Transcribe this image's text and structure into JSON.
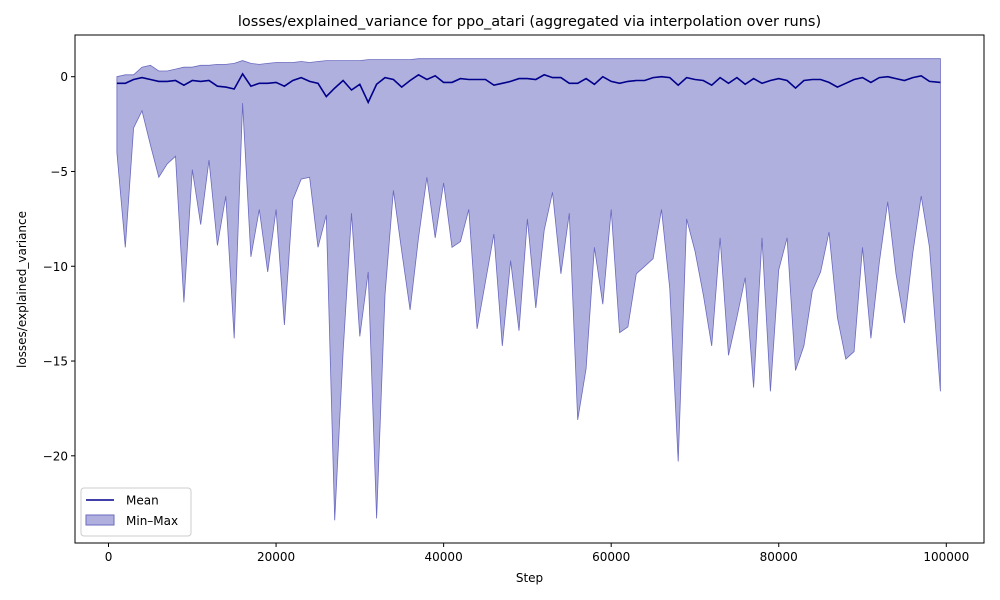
{
  "chart_data": {
    "type": "line",
    "title": "losses/explained_variance for ppo_atari (aggregated via interpolation over runs)",
    "xlabel": "Step",
    "ylabel": "losses/explained_variance",
    "xlim": [
      -4000,
      104500
    ],
    "ylim": [
      -24.6,
      2.2
    ],
    "xticks": [
      0,
      20000,
      40000,
      60000,
      80000,
      100000
    ],
    "xtick_labels": [
      "0",
      "20000",
      "40000",
      "60000",
      "80000",
      "100000"
    ],
    "yticks": [
      0,
      -5,
      -10,
      -15,
      -20
    ],
    "ytick_labels": [
      "0",
      "−5",
      "−10",
      "−15",
      "−20"
    ],
    "grid": false,
    "legend_position": "lower-left",
    "colors": {
      "mean": "#00008b",
      "band_fill": "#7b7bc8",
      "band_edge": "#6a6ac0"
    },
    "series": [
      {
        "name": "Mean",
        "x": [
          1000,
          2000,
          3000,
          4000,
          5000,
          6000,
          7000,
          8000,
          9000,
          10000,
          11000,
          12000,
          13000,
          14000,
          15000,
          16000,
          17000,
          18000,
          19000,
          20000,
          21000,
          22000,
          23000,
          24000,
          25000,
          26000,
          27000,
          28000,
          29000,
          30000,
          31000,
          32000,
          33000,
          34000,
          35000,
          36000,
          37000,
          38000,
          39000,
          40000,
          41000,
          42000,
          43000,
          44000,
          45000,
          46000,
          47000,
          48000,
          49000,
          50000,
          51000,
          52000,
          53000,
          54000,
          55000,
          56000,
          57000,
          58000,
          59000,
          60000,
          61000,
          62000,
          63000,
          64000,
          65000,
          66000,
          67000,
          68000,
          69000,
          70000,
          71000,
          72000,
          73000,
          74000,
          75000,
          76000,
          77000,
          78000,
          79000,
          80000,
          81000,
          82000,
          83000,
          84000,
          85000,
          86000,
          87000,
          88000,
          89000,
          90000,
          91000,
          92000,
          93000,
          94000,
          95000,
          96000,
          97000,
          98000,
          99300
        ],
        "y": [
          -0.35,
          -0.35,
          -0.15,
          -0.05,
          -0.15,
          -0.25,
          -0.25,
          -0.2,
          -0.45,
          -0.2,
          -0.25,
          -0.2,
          -0.5,
          -0.55,
          -0.65,
          0.15,
          -0.5,
          -0.35,
          -0.35,
          -0.3,
          -0.5,
          -0.2,
          -0.05,
          -0.25,
          -0.35,
          -1.05,
          -0.6,
          -0.2,
          -0.7,
          -0.4,
          -1.35,
          -0.4,
          -0.05,
          -0.15,
          -0.55,
          -0.2,
          0.1,
          -0.15,
          0.05,
          -0.3,
          -0.3,
          -0.1,
          -0.15,
          -0.15,
          -0.15,
          -0.45,
          -0.35,
          -0.25,
          -0.1,
          -0.1,
          -0.15,
          0.1,
          -0.05,
          -0.05,
          -0.35,
          -0.35,
          -0.1,
          -0.4,
          0.0,
          -0.25,
          -0.35,
          -0.25,
          -0.2,
          -0.2,
          -0.05,
          0.0,
          -0.05,
          -0.45,
          -0.05,
          -0.15,
          -0.2,
          -0.45,
          -0.05,
          -0.35,
          -0.05,
          -0.4,
          -0.1,
          -0.35,
          -0.2,
          -0.1,
          -0.2,
          -0.6,
          -0.2,
          -0.15,
          -0.15,
          -0.3,
          -0.55,
          -0.35,
          -0.15,
          -0.05,
          -0.3,
          -0.05,
          0.0,
          -0.1,
          -0.2,
          -0.05,
          0.05,
          -0.25,
          -0.3
        ]
      },
      {
        "name": "Min–Max",
        "x": [
          1000,
          2000,
          3000,
          4000,
          5000,
          6000,
          7000,
          8000,
          9000,
          10000,
          11000,
          12000,
          13000,
          14000,
          15000,
          16000,
          17000,
          18000,
          19000,
          20000,
          21000,
          22000,
          23000,
          24000,
          25000,
          26000,
          27000,
          28000,
          29000,
          30000,
          31000,
          32000,
          33000,
          34000,
          35000,
          36000,
          37000,
          38000,
          39000,
          40000,
          41000,
          42000,
          43000,
          44000,
          45000,
          46000,
          47000,
          48000,
          49000,
          50000,
          51000,
          52000,
          53000,
          54000,
          55000,
          56000,
          57000,
          58000,
          59000,
          60000,
          61000,
          62000,
          63000,
          64000,
          65000,
          66000,
          67000,
          68000,
          69000,
          70000,
          71000,
          72000,
          73000,
          74000,
          75000,
          76000,
          77000,
          78000,
          79000,
          80000,
          81000,
          82000,
          83000,
          84000,
          85000,
          86000,
          87000,
          88000,
          89000,
          90000,
          91000,
          92000,
          93000,
          94000,
          95000,
          96000,
          97000,
          98000,
          99300
        ],
        "upper": [
          0.0,
          0.1,
          0.1,
          0.5,
          0.6,
          0.3,
          0.3,
          0.4,
          0.5,
          0.5,
          0.6,
          0.6,
          0.65,
          0.65,
          0.7,
          0.85,
          0.7,
          0.65,
          0.7,
          0.75,
          0.75,
          0.75,
          0.8,
          0.75,
          0.8,
          0.85,
          0.85,
          0.85,
          0.85,
          0.85,
          0.9,
          0.9,
          0.9,
          0.9,
          0.9,
          0.9,
          0.95,
          0.95,
          0.95,
          0.95,
          0.95,
          0.95,
          0.95,
          0.95,
          0.95,
          0.95,
          0.95,
          0.95,
          0.95,
          0.95,
          0.95,
          0.95,
          0.95,
          0.95,
          0.95,
          0.95,
          0.95,
          0.95,
          0.95,
          0.95,
          0.95,
          0.95,
          0.95,
          0.95,
          0.95,
          0.95,
          0.95,
          0.95,
          0.95,
          0.95,
          0.95,
          0.95,
          0.95,
          0.95,
          0.95,
          0.95,
          0.95,
          0.95,
          0.95,
          0.95,
          0.95,
          0.95,
          0.95,
          0.95,
          0.95,
          0.95,
          0.95,
          0.95,
          0.95,
          0.95,
          0.95,
          0.95,
          0.95,
          0.95,
          0.95,
          0.95,
          0.95,
          0.95,
          0.95
        ],
        "lower": [
          -4.0,
          -9.0,
          -2.7,
          -1.8,
          -3.6,
          -5.3,
          -4.6,
          -4.2,
          -11.9,
          -4.9,
          -7.8,
          -4.4,
          -8.9,
          -6.3,
          -13.8,
          -1.4,
          -9.5,
          -7.0,
          -10.3,
          -7.0,
          -13.1,
          -6.5,
          -5.4,
          -5.3,
          -9.0,
          -7.3,
          -23.4,
          -14.5,
          -7.2,
          -13.7,
          -10.3,
          -23.3,
          -11.5,
          -6.0,
          -9.2,
          -12.3,
          -8.5,
          -5.3,
          -8.5,
          -5.6,
          -9.0,
          -8.7,
          -7.0,
          -13.3,
          -10.8,
          -8.3,
          -14.2,
          -9.7,
          -13.4,
          -7.5,
          -12.2,
          -8.1,
          -6.1,
          -10.4,
          -7.2,
          -18.1,
          -15.4,
          -9.0,
          -12.0,
          -7.0,
          -13.5,
          -13.2,
          -10.4,
          -10.0,
          -9.6,
          -7.0,
          -11.2,
          -20.3,
          -7.5,
          -9.2,
          -11.5,
          -14.2,
          -8.5,
          -14.7,
          -12.7,
          -10.6,
          -16.4,
          -8.5,
          -16.6,
          -10.2,
          -8.5,
          -15.5,
          -14.2,
          -11.3,
          -10.3,
          -8.2,
          -12.7,
          -14.9,
          -14.5,
          -9.0,
          -13.8,
          -9.8,
          -6.6,
          -10.4,
          -13.0,
          -9.3,
          -6.3,
          -9.0,
          -16.6
        ]
      }
    ]
  },
  "legend": {
    "mean_label": "Mean",
    "band_label": "Min–Max"
  }
}
